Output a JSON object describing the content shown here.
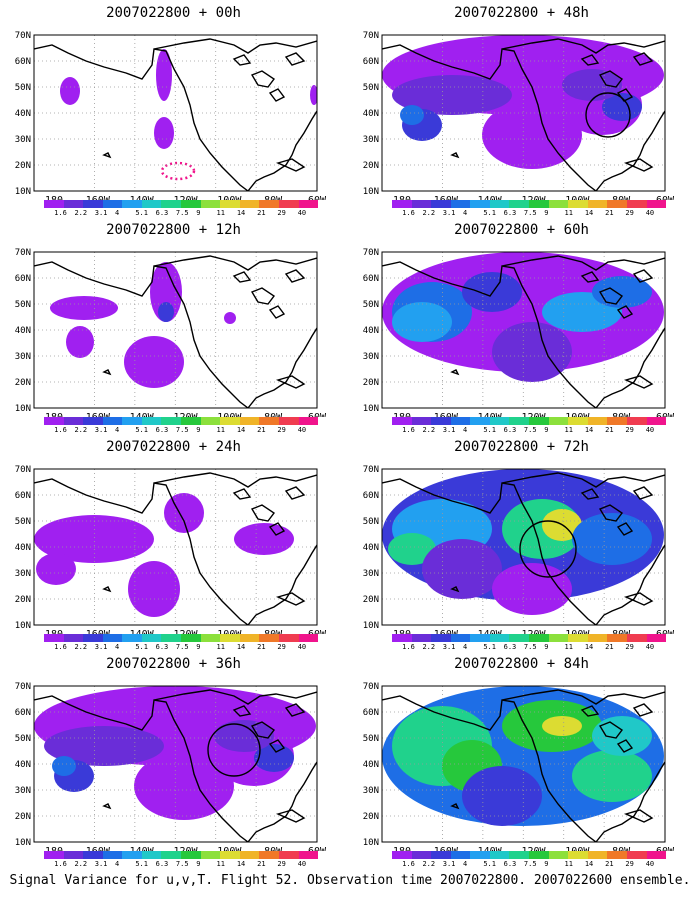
{
  "panels": [
    {
      "title": "2007022800 + 00h",
      "level": 0
    },
    {
      "title": "2007022800 + 48h",
      "level": 3
    },
    {
      "title": "2007022800 + 12h",
      "level": 1
    },
    {
      "title": "2007022800 + 60h",
      "level": 4
    },
    {
      "title": "2007022800 + 24h",
      "level": 2
    },
    {
      "title": "2007022800 + 72h",
      "level": 5
    },
    {
      "title": "2007022800 + 36h",
      "level": 3
    },
    {
      "title": "2007022800 + 84h",
      "level": 6
    }
  ],
  "lat_labels": [
    "70N",
    "60N",
    "50N",
    "40N",
    "30N",
    "20N",
    "10N"
  ],
  "lon_labels": [
    "180",
    "160W",
    "140W",
    "120W",
    "100W",
    "80W",
    "60W"
  ],
  "colorbar": {
    "labels": [
      "1.6",
      "2.2",
      "3.1",
      "4",
      "5.1",
      "6.3",
      "7.5",
      "9",
      "11",
      "14",
      "21",
      "29",
      "40"
    ],
    "colors": [
      "#a020f0",
      "#6a2dd8",
      "#3a3ad8",
      "#1e6ee6",
      "#22a0f0",
      "#20c8c8",
      "#20d28c",
      "#26c83c",
      "#8ce03c",
      "#dcdc32",
      "#f0b428",
      "#f07828",
      "#f03c50",
      "#f0148c"
    ]
  },
  "caption": "Signal Variance for u,v,T. Flight 52. Observation time 2007022800. 2007022600 ensemble."
}
